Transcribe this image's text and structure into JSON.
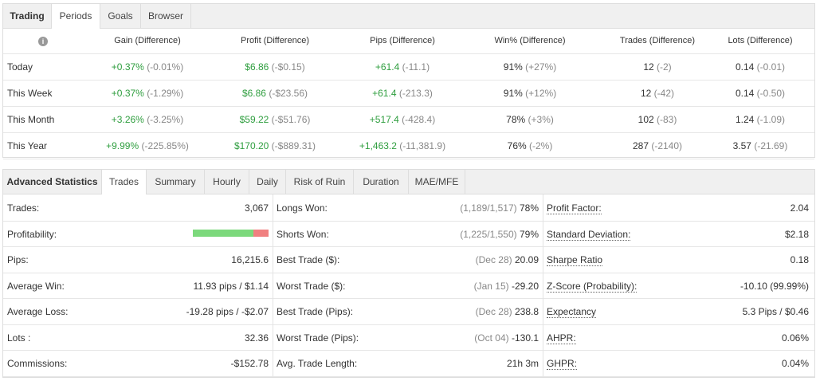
{
  "top": {
    "tabs": [
      "Trading",
      "Periods",
      "Goals",
      "Browser"
    ],
    "headers": [
      "Gain (Difference)",
      "Profit (Difference)",
      "Pips (Difference)",
      "Win% (Difference)",
      "Trades (Difference)",
      "Lots (Difference)"
    ],
    "rows": [
      {
        "label": "Today",
        "cells": [
          {
            "value": "+0.37%",
            "diff": "(-0.01%)"
          },
          {
            "value": "$6.86",
            "diff": "(-$0.15)"
          },
          {
            "value": "+61.4",
            "diff": "(-11.1)"
          },
          {
            "value": "91%",
            "diff": "(+27%)"
          },
          {
            "value": "12",
            "diff": "(-2)"
          },
          {
            "value": "0.14",
            "diff": "(-0.01)"
          }
        ]
      },
      {
        "label": "This Week",
        "cells": [
          {
            "value": "+0.37%",
            "diff": "(-1.29%)"
          },
          {
            "value": "$6.86",
            "diff": "(-$23.56)"
          },
          {
            "value": "+61.4",
            "diff": "(-213.3)"
          },
          {
            "value": "91%",
            "diff": "(+12%)"
          },
          {
            "value": "12",
            "diff": "(-42)"
          },
          {
            "value": "0.14",
            "diff": "(-0.50)"
          }
        ]
      },
      {
        "label": "This Month",
        "cells": [
          {
            "value": "+3.26%",
            "diff": "(-3.25%)"
          },
          {
            "value": "$59.22",
            "diff": "(-$51.76)"
          },
          {
            "value": "+517.4",
            "diff": "(-428.4)"
          },
          {
            "value": "78%",
            "diff": "(+3%)"
          },
          {
            "value": "102",
            "diff": "(-83)"
          },
          {
            "value": "1.24",
            "diff": "(-1.09)"
          }
        ]
      },
      {
        "label": "This Year",
        "cells": [
          {
            "value": "+9.99%",
            "diff": "(-225.85%)"
          },
          {
            "value": "$170.20",
            "diff": "(-$889.31)"
          },
          {
            "value": "+1,463.2",
            "diff": "(-11,381.9)"
          },
          {
            "value": "76%",
            "diff": "(-2%)"
          },
          {
            "value": "287",
            "diff": "(-2140)"
          },
          {
            "value": "3.57",
            "diff": "(-21.69)"
          }
        ]
      }
    ]
  },
  "bottom": {
    "tabs": [
      "Advanced Statistics",
      "Trades",
      "Summary",
      "Hourly",
      "Daily",
      "Risk of Ruin",
      "Duration",
      "MAE/MFE"
    ],
    "columns": [
      [
        {
          "label": "Trades:",
          "value": "3,067"
        },
        {
          "label": "Profitability:"
        },
        {
          "label": "Pips:",
          "value": "16,215.6"
        },
        {
          "label": "Average Win:",
          "value": "11.93 pips / $1.14"
        },
        {
          "label": "Average Loss:",
          "value": "-19.28 pips / -$2.07"
        },
        {
          "label": "Lots :",
          "value": "32.36"
        },
        {
          "label": "Commissions:",
          "value": "-$152.78"
        }
      ],
      [
        {
          "label": "Longs Won:",
          "note": "(1,189/1,517)",
          "value": "78%"
        },
        {
          "label": "Shorts Won:",
          "note": "(1,225/1,550)",
          "value": "79%"
        },
        {
          "label": "Best Trade ($):",
          "note": "(Dec 28)",
          "value": "20.09"
        },
        {
          "label": "Worst Trade ($):",
          "note": "(Jan 15)",
          "value": "-29.20"
        },
        {
          "label": "Best Trade (Pips):",
          "note": "(Dec 28)",
          "value": "238.8"
        },
        {
          "label": "Worst Trade (Pips):",
          "note": "(Oct 04)",
          "value": "-130.1"
        },
        {
          "label": "Avg. Trade Length:",
          "value": "21h 3m"
        }
      ],
      [
        {
          "label": "Profit Factor:",
          "value": "2.04"
        },
        {
          "label": "Standard Deviation:",
          "value": "$2.18"
        },
        {
          "label": "Sharpe Ratio",
          "value": "0.18"
        },
        {
          "label": "Z-Score (Probability):",
          "value": "-10.10 (99.99%)"
        },
        {
          "label": "Expectancy",
          "value": "5.3 Pips / $0.46"
        },
        {
          "label": "AHPR:",
          "value": "0.06%"
        },
        {
          "label": "GHPR:",
          "value": "0.04%"
        }
      ]
    ]
  }
}
